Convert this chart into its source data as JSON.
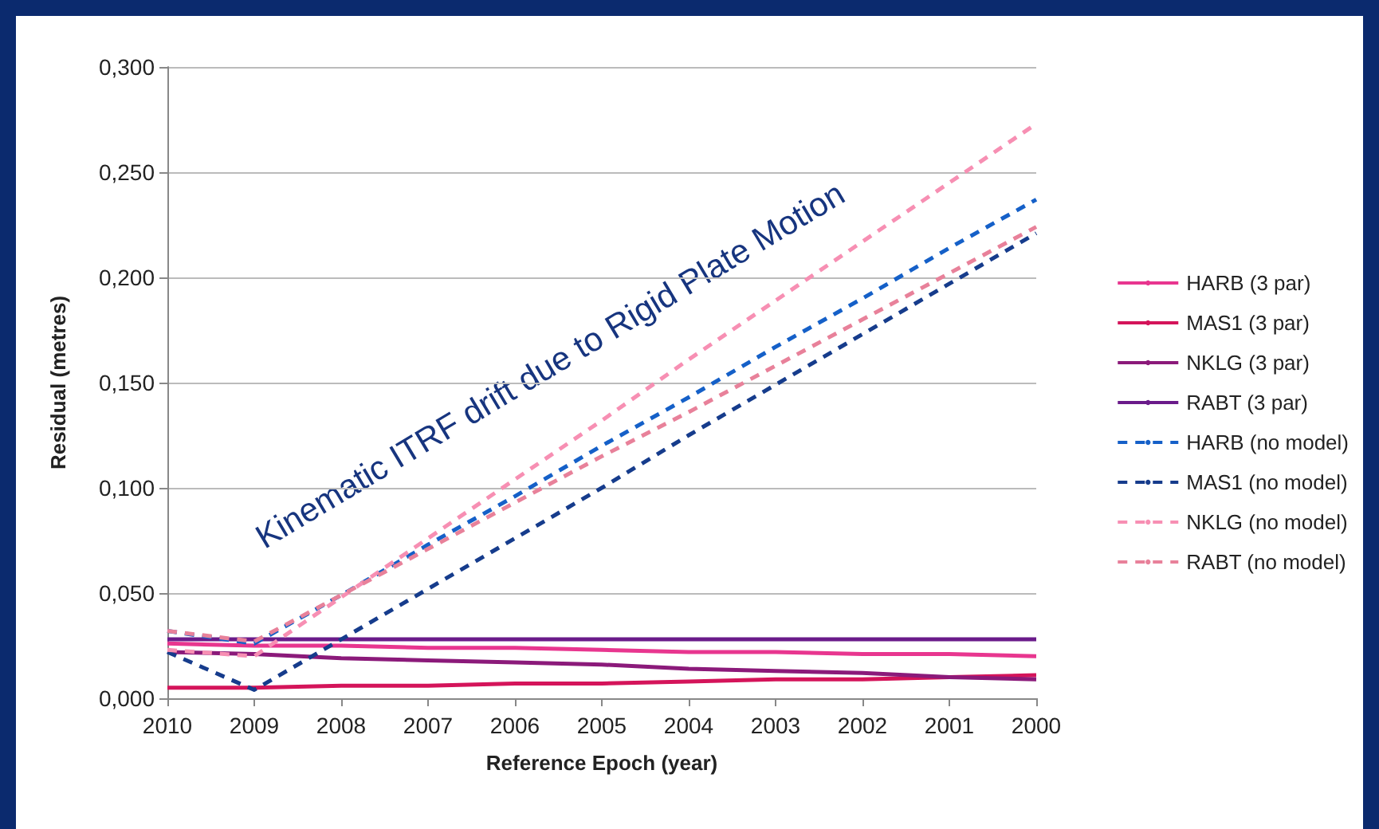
{
  "chart_data": {
    "type": "line",
    "xlabel": "Reference Epoch (year)",
    "ylabel": "Residual (metres)",
    "categories": [
      "2010",
      "2009",
      "2008",
      "2007",
      "2006",
      "2005",
      "2004",
      "2003",
      "2002",
      "2001",
      "2000"
    ],
    "ylim": [
      0,
      0.3
    ],
    "yticks": [
      {
        "value": 0,
        "label": "0,000"
      },
      {
        "value": 0.05,
        "label": "0,050"
      },
      {
        "value": 0.1,
        "label": "0,100"
      },
      {
        "value": 0.15,
        "label": "0,150"
      },
      {
        "value": 0.2,
        "label": "0,200"
      },
      {
        "value": 0.25,
        "label": "0,250"
      },
      {
        "value": 0.3,
        "label": "0,300"
      }
    ],
    "grid": "y",
    "legend": "right",
    "marker": "none",
    "annotations": [
      "Kinematic ITRF drift due to Rigid Plate Motion"
    ],
    "series": [
      {
        "name": "HARB (3 par)",
        "color": "#e8368f",
        "line_style": "solid",
        "values": [
          0.026,
          0.025,
          0.025,
          0.024,
          0.024,
          0.023,
          0.022,
          0.022,
          0.021,
          0.021,
          0.02
        ]
      },
      {
        "name": "MAS1 (3 par)",
        "color": "#d4145a",
        "line_style": "solid",
        "values": [
          0.005,
          0.005,
          0.006,
          0.006,
          0.007,
          0.007,
          0.008,
          0.009,
          0.009,
          0.01,
          0.011
        ]
      },
      {
        "name": "NKLG (3 par)",
        "color": "#8b1a7a",
        "line_style": "solid",
        "values": [
          0.022,
          0.021,
          0.019,
          0.018,
          0.017,
          0.016,
          0.014,
          0.013,
          0.012,
          0.01,
          0.009
        ]
      },
      {
        "name": "RABT (3 par)",
        "color": "#6a1b8a",
        "line_style": "solid",
        "values": [
          0.028,
          0.028,
          0.028,
          0.028,
          0.028,
          0.028,
          0.028,
          0.028,
          0.028,
          0.028,
          0.028
        ]
      },
      {
        "name": "HARB (no model)",
        "color": "#1560c8",
        "line_style": "dashed",
        "values": [
          0.032,
          0.026,
          0.049,
          0.073,
          0.096,
          0.12,
          0.143,
          0.167,
          0.19,
          0.214,
          0.237
        ]
      },
      {
        "name": "MAS1 (no model)",
        "color": "#163c8c",
        "line_style": "dashed",
        "values": [
          0.022,
          0.004,
          0.028,
          0.052,
          0.076,
          0.1,
          0.125,
          0.149,
          0.173,
          0.197,
          0.221
        ]
      },
      {
        "name": "NKLG (no model)",
        "color": "#f78fb3",
        "line_style": "dashed",
        "values": [
          0.023,
          0.02,
          0.048,
          0.076,
          0.104,
          0.132,
          0.161,
          0.189,
          0.217,
          0.245,
          0.273
        ]
      },
      {
        "name": "RABT (no model)",
        "color": "#e8819a",
        "line_style": "dashed",
        "values": [
          0.032,
          0.027,
          0.049,
          0.071,
          0.093,
          0.115,
          0.136,
          0.158,
          0.18,
          0.202,
          0.224
        ]
      }
    ]
  }
}
